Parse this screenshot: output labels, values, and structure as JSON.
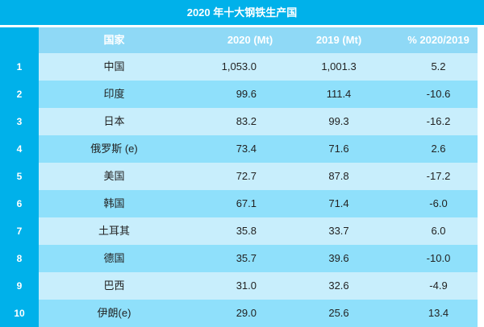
{
  "title": "2020 年十大钢铁生产国",
  "headers": {
    "index": "",
    "country": "国家",
    "y2020": "2020 (Mt)",
    "y2019": "2019 (Mt)",
    "pct": "% 2020/2019"
  },
  "rows": [
    {
      "rank": "1",
      "country": "中国",
      "y2020": "1,053.0",
      "y2019": "1,001.3",
      "pct": "5.2"
    },
    {
      "rank": "2",
      "country": "印度",
      "y2020": "99.6",
      "y2019": "111.4",
      "pct": "-10.6"
    },
    {
      "rank": "3",
      "country": "日本",
      "y2020": "83.2",
      "y2019": "99.3",
      "pct": "-16.2"
    },
    {
      "rank": "4",
      "country": "俄罗斯 (e)",
      "y2020": "73.4",
      "y2019": "71.6",
      "pct": "2.6"
    },
    {
      "rank": "5",
      "country": "美国",
      "y2020": "72.7",
      "y2019": "87.8",
      "pct": "-17.2"
    },
    {
      "rank": "6",
      "country": "韩国",
      "y2020": "67.1",
      "y2019": "71.4",
      "pct": "-6.0"
    },
    {
      "rank": "7",
      "country": "土耳其",
      "y2020": "35.8",
      "y2019": "33.7",
      "pct": "6.0"
    },
    {
      "rank": "8",
      "country": "德国",
      "y2020": "35.7",
      "y2019": "39.6",
      "pct": "-10.0"
    },
    {
      "rank": "9",
      "country": "巴西",
      "y2020": "31.0",
      "y2019": "32.6",
      "pct": "-4.9"
    },
    {
      "rank": "10",
      "country": "伊朗(e)",
      "y2020": "29.0",
      "y2019": "25.6",
      "pct": "13.4"
    }
  ],
  "colors": {
    "accent": "#00b1ea",
    "header": "#8fd9f6",
    "row_light": "#c8eefc",
    "row_mid": "#8fe0fb"
  }
}
